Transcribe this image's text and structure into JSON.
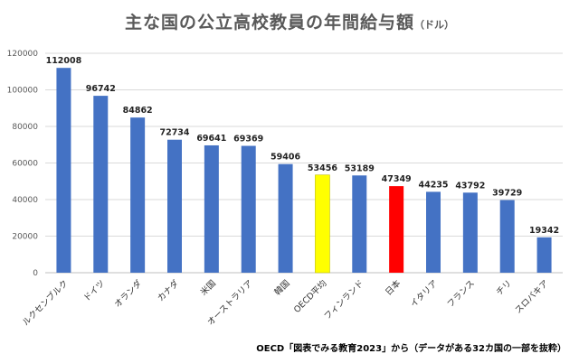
{
  "title": "主な国の公立高校教員の年間給与額",
  "title_unit": "（ドル）",
  "source": "OECD「図表でみる教育2023」から（データがある32カ国の一部を抜粋）",
  "colors": {
    "default_bar": "#4472C4",
    "oecd_average": "#FFFF00",
    "japan": "#FF0000",
    "gridline": "#D9D9D9",
    "axis_text": "#595959"
  },
  "chart_data": {
    "type": "bar",
    "title": "主な国の公立高校教員の年間給与額",
    "categories": [
      "ルクセンブルク",
      "ドイツ",
      "オランダ",
      "カナダ",
      "米国",
      "オーストラリア",
      "韓国",
      "OECD平均",
      "フィンランド",
      "日本",
      "イタリア",
      "フランス",
      "チリ",
      "スロバキア"
    ],
    "values": [
      112008,
      96742,
      84862,
      72734,
      69641,
      69369,
      59406,
      53456,
      53189,
      47349,
      44235,
      43792,
      39729,
      19342
    ],
    "bar_colors": [
      "#4472C4",
      "#4472C4",
      "#4472C4",
      "#4472C4",
      "#4472C4",
      "#4472C4",
      "#4472C4",
      "#FFFF00",
      "#4472C4",
      "#FF0000",
      "#4472C4",
      "#4472C4",
      "#4472C4",
      "#4472C4"
    ],
    "ylim": [
      0,
      120000
    ],
    "yticks": [
      0,
      20000,
      40000,
      60000,
      80000,
      100000,
      120000
    ],
    "grid": true,
    "data_labels": true
  }
}
